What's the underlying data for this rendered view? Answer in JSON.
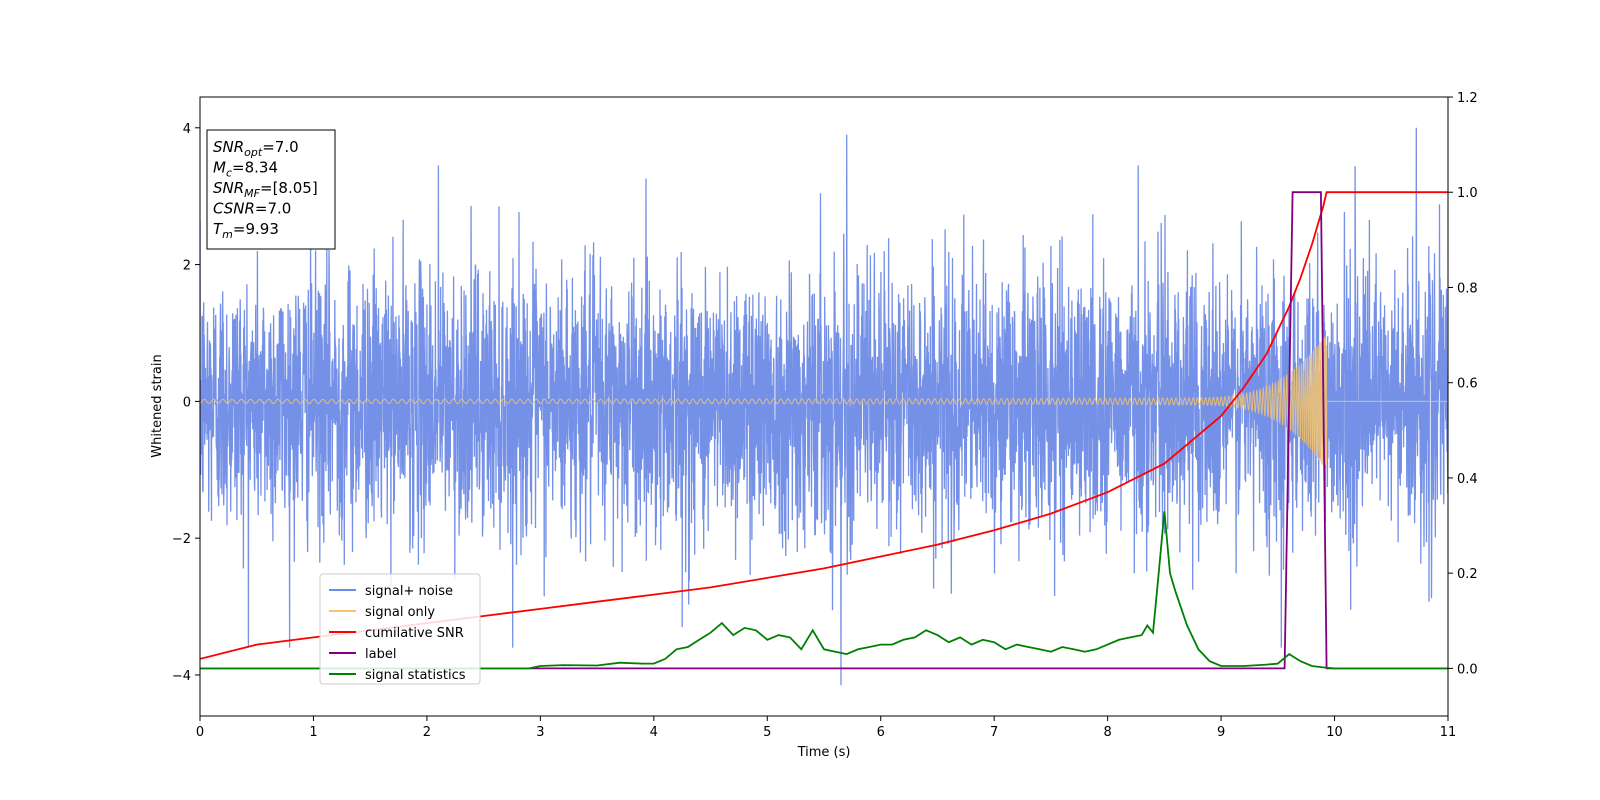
{
  "chart_data": {
    "type": "line",
    "xlabel": "Time (s)",
    "ylabel": "Whitened strain",
    "xlim": [
      0,
      11
    ],
    "ylim": [
      -4.6,
      4.45
    ],
    "y2lim": [
      -0.1,
      1.2
    ],
    "x_ticks": [
      "0",
      "1",
      "2",
      "3",
      "4",
      "5",
      "6",
      "7",
      "8",
      "9",
      "10",
      "11"
    ],
    "y_ticks": [
      "−4",
      "−2",
      "0",
      "2",
      "4"
    ],
    "y2_ticks": [
      "0.0",
      "0.2",
      "0.4",
      "0.6",
      "0.8",
      "1.0",
      "1.2"
    ],
    "legend_position": "lower-left",
    "info_box": {
      "position": "upper-left",
      "lines": [
        {
          "main": "SNR",
          "sub": "opt",
          "rest": "=7.0"
        },
        {
          "main": "M",
          "sub": "c",
          "rest": "=8.34"
        },
        {
          "main": "SNR",
          "sub": "MF",
          "rest": "=[8.05]"
        },
        {
          "main": "CSNR",
          "sub": "",
          "rest": "=7.0"
        },
        {
          "main": "T",
          "sub": "m",
          "rest": "=9.93"
        }
      ]
    },
    "series": [
      {
        "name": "signal+ noise",
        "color": "#6d8ae6",
        "axis": "left",
        "kind": "noise",
        "sigma": 0.95,
        "extremes_positive": 4.0,
        "extremes_negative": -4.15
      },
      {
        "name": "signal only",
        "color": "#f5c46e",
        "axis": "left",
        "kind": "chirp",
        "merger_time": 9.93,
        "peak_amplitude": 0.95,
        "start_amplitude": 0.03
      },
      {
        "name": "cumilative SNR",
        "color": "#ff0000",
        "axis": "right",
        "x": [
          0,
          0.5,
          1,
          1.5,
          2,
          2.5,
          3,
          3.5,
          4,
          4.5,
          5,
          5.5,
          6,
          6.5,
          7,
          7.5,
          8,
          8.5,
          9,
          9.2,
          9.4,
          9.6,
          9.7,
          9.8,
          9.85,
          9.9,
          9.93,
          9.95,
          10,
          10.5,
          11
        ],
        "y": [
          0.02,
          0.05,
          0.065,
          0.08,
          0.095,
          0.11,
          0.125,
          0.14,
          0.155,
          0.17,
          0.19,
          0.21,
          0.235,
          0.26,
          0.29,
          0.325,
          0.37,
          0.43,
          0.53,
          0.59,
          0.66,
          0.76,
          0.82,
          0.89,
          0.93,
          0.97,
          1.0,
          1.0,
          1.0,
          1.0,
          1.0
        ]
      },
      {
        "name": "label",
        "color": "#800080",
        "axis": "right",
        "x": [
          0,
          9.56,
          9.63,
          9.88,
          9.93,
          11
        ],
        "y": [
          0,
          0,
          1,
          1,
          0,
          0
        ]
      },
      {
        "name": "signal statistics",
        "color": "#008000",
        "axis": "right",
        "x": [
          0,
          2.5,
          2.9,
          3.0,
          3.2,
          3.5,
          3.7,
          3.9,
          4.0,
          4.1,
          4.2,
          4.3,
          4.4,
          4.5,
          4.6,
          4.7,
          4.8,
          4.9,
          5.0,
          5.1,
          5.2,
          5.3,
          5.4,
          5.5,
          5.6,
          5.7,
          5.8,
          5.9,
          6.0,
          6.1,
          6.2,
          6.3,
          6.4,
          6.5,
          6.6,
          6.7,
          6.8,
          6.9,
          7.0,
          7.1,
          7.2,
          7.3,
          7.4,
          7.5,
          7.6,
          7.7,
          7.8,
          7.9,
          8.0,
          8.1,
          8.2,
          8.3,
          8.35,
          8.4,
          8.45,
          8.5,
          8.55,
          8.6,
          8.7,
          8.8,
          8.9,
          9.0,
          9.2,
          9.4,
          9.5,
          9.6,
          9.7,
          9.8,
          9.9,
          10.0,
          11
        ],
        "y": [
          0.0,
          0.0,
          0.0,
          0.005,
          0.007,
          0.006,
          0.012,
          0.01,
          0.01,
          0.02,
          0.04,
          0.045,
          0.06,
          0.075,
          0.095,
          0.07,
          0.085,
          0.08,
          0.06,
          0.07,
          0.065,
          0.04,
          0.08,
          0.04,
          0.035,
          0.03,
          0.04,
          0.045,
          0.05,
          0.05,
          0.06,
          0.065,
          0.08,
          0.07,
          0.055,
          0.065,
          0.05,
          0.06,
          0.055,
          0.04,
          0.05,
          0.045,
          0.04,
          0.035,
          0.045,
          0.04,
          0.035,
          0.04,
          0.05,
          0.06,
          0.065,
          0.07,
          0.09,
          0.075,
          0.2,
          0.33,
          0.2,
          0.16,
          0.09,
          0.04,
          0.015,
          0.005,
          0.005,
          0.008,
          0.01,
          0.03,
          0.015,
          0.005,
          0.002,
          0.0,
          0.0
        ]
      }
    ]
  }
}
